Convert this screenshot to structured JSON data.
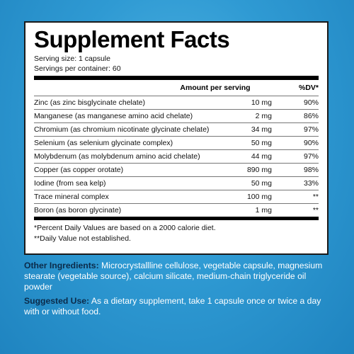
{
  "panel": {
    "title": "Supplement Facts",
    "serving_size": "Serving size: 1 capsule",
    "servings_per_container": "Servings per container: 60",
    "header_amount": "Amount per serving",
    "header_dv": "%DV*",
    "rows": [
      {
        "name": "Zinc (as zinc bisglycinate chelate)",
        "amount": "10 mg",
        "dv": "90%"
      },
      {
        "name": "Manganese (as manganese amino acid chelate)",
        "amount": "2 mg",
        "dv": "86%"
      },
      {
        "name": "Chromium (as chromium nicotinate glycinate chelate)",
        "amount": "34 mg",
        "dv": "97%"
      },
      {
        "name": "Selenium (as selenium glycinate complex)",
        "amount": "50 mg",
        "dv": "90%"
      },
      {
        "name": "Molybdenum (as molybdenum amino acid chelate)",
        "amount": "44 mg",
        "dv": "97%"
      },
      {
        "name": "Copper (as copper orotate)",
        "amount": "890 mg",
        "dv": "98%"
      },
      {
        "name": "Iodine (from sea kelp)",
        "amount": "50 mg",
        "dv": "33%"
      },
      {
        "name": "Trace mineral complex",
        "amount": "100 mg",
        "dv": "**"
      },
      {
        "name": "Boron (as boron glycinate)",
        "amount": "1 mg",
        "dv": "**"
      }
    ],
    "footnote_1": "*Percent Daily Values are based on a 2000 calorie diet.",
    "footnote_2": "**Daily Value not established."
  },
  "other_ingredients": {
    "label": "Other Ingredients:",
    "text": " Microcrystallline cellulose, vegetable capsule, magnesium stearate (vegetable source), calcium silicate, medium-chain triglyceride oil powder"
  },
  "suggested_use": {
    "label": "Suggested Use:",
    "text": " As a dietary supplement, take 1 capsule once or twice a day with or without food."
  },
  "colors": {
    "background": "#2f9ad3",
    "label_color": "#0b2b4a"
  }
}
